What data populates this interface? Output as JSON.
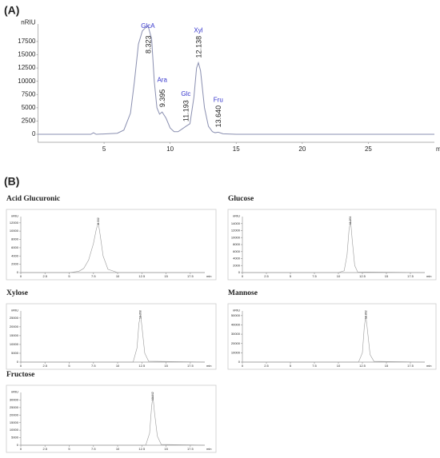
{
  "panels": [
    "(A)",
    "(B)"
  ],
  "chart_data": [
    {
      "type": "line",
      "color": "#8a8fb0",
      "ylabel": "nRIU",
      "xlabel": "min",
      "xlim": [
        0,
        30
      ],
      "ylim": [
        -1500,
        20800
      ],
      "xticks": [
        5,
        10,
        15,
        20,
        25
      ],
      "yticks": [
        0,
        2500,
        5000,
        7500,
        10000,
        12500,
        15000,
        17500
      ],
      "x": [
        0,
        4,
        4.2,
        4.4,
        6,
        6.5,
        7,
        7.3,
        7.6,
        7.9,
        8.1,
        8.323,
        8.6,
        8.8,
        9.0,
        9.2,
        9.395,
        9.7,
        10.0,
        10.3,
        10.6,
        10.9,
        11.193,
        11.5,
        11.8,
        12.0,
        12.138,
        12.3,
        12.6,
        12.9,
        13.2,
        13.4,
        13.64,
        14,
        15,
        20,
        25,
        30
      ],
      "values": [
        0,
        0,
        300,
        0,
        200,
        800,
        4000,
        10000,
        17000,
        19500,
        20000,
        20500,
        18000,
        10000,
        5000,
        3800,
        4200,
        3000,
        1200,
        500,
        500,
        1000,
        1500,
        2000,
        7000,
        12500,
        13500,
        12000,
        5000,
        1500,
        500,
        300,
        400,
        100,
        0,
        0,
        0,
        0
      ],
      "peaks": [
        {
          "name": "GlcA",
          "rt": 8.323
        },
        {
          "name": "Ara",
          "rt": 9.395
        },
        {
          "name": "Glc",
          "rt": 11.193
        },
        {
          "name": "Xyl",
          "rt": 12.138
        },
        {
          "name": "Fru",
          "rt": 13.64,
          "rt_label": "13.640"
        }
      ]
    },
    {
      "type": "line",
      "title": "Acid Glucuronic",
      "color": "#999",
      "ylabel": "nRIU",
      "xlabel": "min",
      "xlim": [
        0,
        19
      ],
      "ylim": [
        0,
        13500
      ],
      "xticks": [
        0,
        2.5,
        5,
        7.5,
        10,
        12.5,
        15,
        17.5
      ],
      "yticks": [
        0,
        2000,
        4000,
        6000,
        8000,
        10000,
        12000
      ],
      "x": [
        0,
        5,
        6,
        6.5,
        7,
        7.5,
        7.8,
        8.002,
        8.2,
        8.5,
        9,
        10,
        19
      ],
      "values": [
        0,
        0,
        300,
        1000,
        3000,
        7000,
        10500,
        12000,
        9000,
        4000,
        800,
        0,
        0
      ],
      "peaks": [
        {
          "rt": 8.002,
          "rt_label": "8.002"
        }
      ]
    },
    {
      "type": "line",
      "title": "Glucose",
      "color": "#999",
      "ylabel": "nRIU",
      "xlabel": "min",
      "xlim": [
        0,
        19
      ],
      "ylim": [
        0,
        16000
      ],
      "xticks": [
        0,
        2.5,
        5,
        7.5,
        10,
        12.5,
        15,
        17.5
      ],
      "yticks": [
        0,
        2000,
        4000,
        6000,
        8000,
        10000,
        12000,
        14000
      ],
      "x": [
        0,
        10,
        10.6,
        10.9,
        11.1,
        11.264,
        11.45,
        11.7,
        12,
        19
      ],
      "values": [
        0,
        0,
        500,
        5000,
        12000,
        15000,
        9000,
        2000,
        200,
        0
      ],
      "peaks": [
        {
          "rt": 11.264
        }
      ]
    },
    {
      "type": "line",
      "title": "Xylose",
      "color": "#999",
      "ylabel": "nRIU",
      "xlabel": "min",
      "xlim": [
        0,
        19
      ],
      "ylim": [
        0,
        29000
      ],
      "xticks": [
        0,
        2.5,
        5,
        7.5,
        10,
        12.5,
        15,
        17.5
      ],
      "yticks": [
        0,
        5000,
        10000,
        15000,
        20000,
        25000
      ],
      "x": [
        0,
        11.6,
        12,
        12.2,
        12.368,
        12.55,
        12.8,
        13.2,
        19
      ],
      "values": [
        0,
        0,
        8000,
        22000,
        27000,
        18000,
        5000,
        500,
        0
      ],
      "peaks": [
        {
          "rt": 12.368
        }
      ]
    },
    {
      "type": "line",
      "title": "Mannose",
      "color": "#999",
      "ylabel": "nRIU",
      "xlabel": "min",
      "xlim": [
        0,
        19
      ],
      "ylim": [
        0,
        55000
      ],
      "xticks": [
        0,
        2.5,
        5,
        7.5,
        10,
        12.5,
        15,
        17.5
      ],
      "yticks": [
        0,
        10000,
        20000,
        30000,
        40000,
        50000
      ],
      "x": [
        0,
        12.1,
        12.5,
        12.7,
        12.862,
        13.05,
        13.3,
        13.7,
        19
      ],
      "values": [
        0,
        0,
        10000,
        38000,
        50000,
        32000,
        8000,
        800,
        0
      ],
      "peaks": [
        {
          "rt": 12.862
        }
      ]
    },
    {
      "type": "line",
      "title": "Fructose",
      "color": "#999",
      "ylabel": "nRIU",
      "xlabel": "min",
      "xlim": [
        0,
        19
      ],
      "ylim": [
        0,
        35000
      ],
      "xticks": [
        0,
        2.5,
        5,
        7.5,
        10,
        12.5,
        15,
        17.5
      ],
      "yticks": [
        0,
        5000,
        10000,
        15000,
        20000,
        25000,
        30000
      ],
      "x": [
        0,
        12.9,
        13.3,
        13.5,
        13.642,
        13.8,
        14.1,
        14.5,
        19
      ],
      "values": [
        0,
        0,
        8000,
        25000,
        33000,
        22000,
        6000,
        500,
        0
      ],
      "peaks": [
        {
          "rt": 13.642
        }
      ]
    }
  ]
}
